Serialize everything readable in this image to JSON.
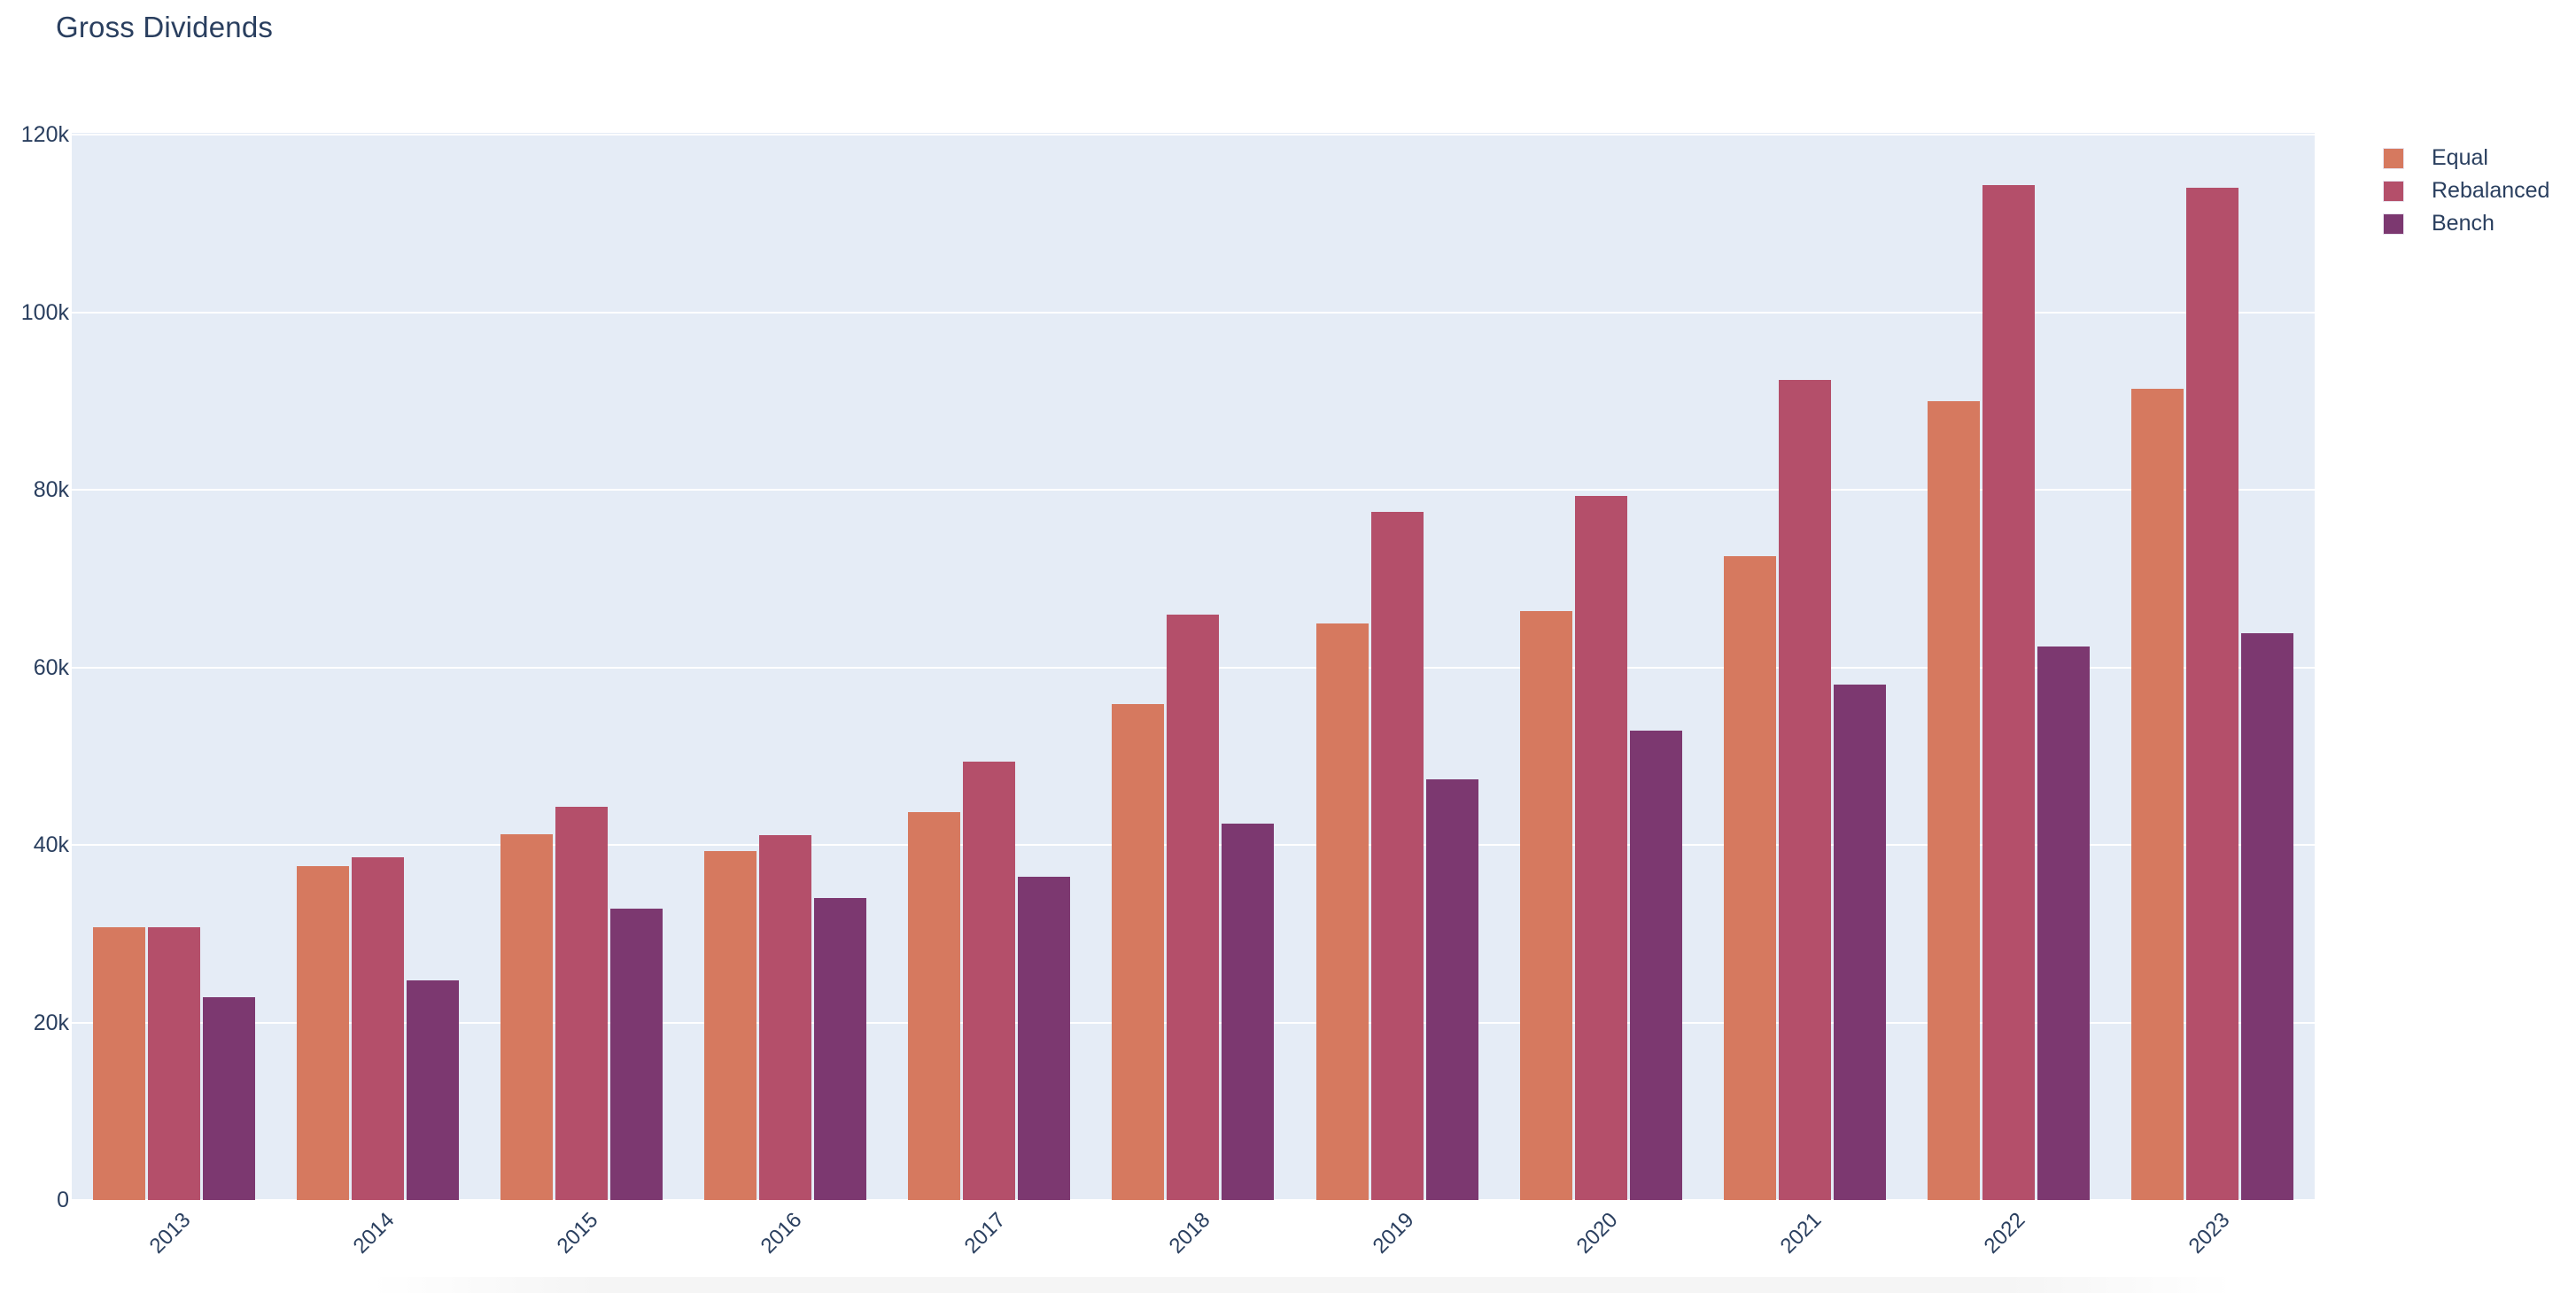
{
  "title": "Gross Dividends",
  "colors": {
    "equal": "#d6795f",
    "rebalanced": "#b44f6a",
    "bench": "#7c3870",
    "plot_background": "#e5ecf6",
    "gridline": "#ffffff",
    "text": "#2a3f5f",
    "page_background": "#ffffff"
  },
  "legend": {
    "items": [
      {
        "label": "Equal",
        "color": "#d6795f"
      },
      {
        "label": "Rebalanced",
        "color": "#b44f6a"
      },
      {
        "label": "Bench",
        "color": "#7c3870"
      }
    ]
  },
  "chart_data": {
    "type": "bar",
    "title": "Gross Dividends",
    "categories": [
      "2013",
      "2014",
      "2015",
      "2016",
      "2017",
      "2018",
      "2019",
      "2020",
      "2021",
      "2022",
      "2023"
    ],
    "series": [
      {
        "name": "Equal",
        "color": "#d6795f",
        "values": [
          30700,
          37600,
          41200,
          39300,
          43700,
          55900,
          64900,
          66300,
          72500,
          90000,
          91400
        ]
      },
      {
        "name": "Rebalanced",
        "color": "#b44f6a",
        "values": [
          30700,
          38600,
          44300,
          41100,
          49400,
          65900,
          77500,
          79300,
          92400,
          114300,
          114000
        ]
      },
      {
        "name": "Bench",
        "color": "#7c3870",
        "values": [
          22800,
          24700,
          32800,
          34000,
          36400,
          42400,
          47400,
          52900,
          58100,
          62300,
          63800
        ]
      }
    ],
    "xlabel": "",
    "ylabel": "",
    "ylim": [
      0,
      120000
    ],
    "yticks": [
      0,
      20000,
      40000,
      60000,
      80000,
      100000,
      120000
    ],
    "ytick_labels": [
      "0",
      "20k",
      "40k",
      "60k",
      "80k",
      "100k",
      "120k"
    ],
    "xtick_angle": -45,
    "grid": true,
    "legend_position": "right"
  }
}
